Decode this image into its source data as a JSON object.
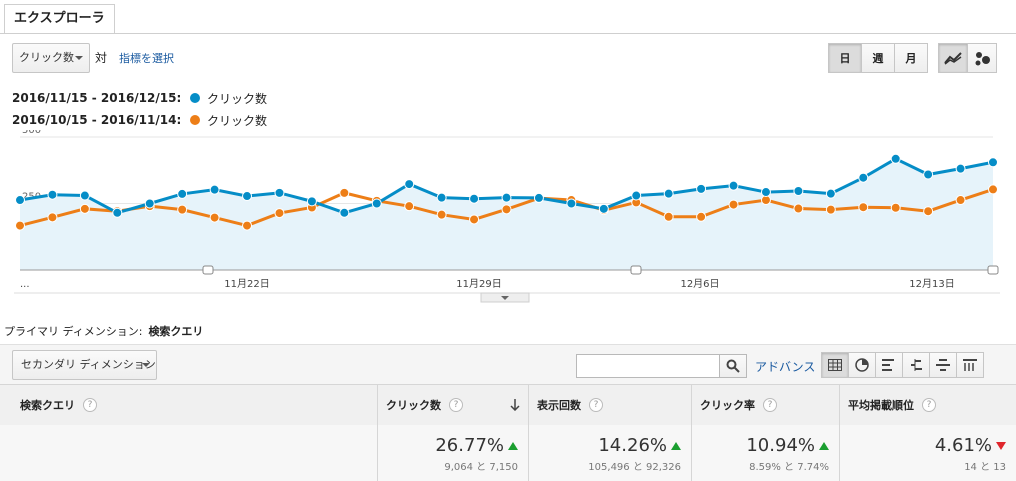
{
  "tab": {
    "label": "エクスプローラ"
  },
  "controls": {
    "metric": "クリック数",
    "vs": "対",
    "select_metric": "指標を選択",
    "granularity": [
      "日",
      "週",
      "月"
    ],
    "granularity_selected": "日",
    "chart_type_selected": "line-chart-icon"
  },
  "legend": [
    {
      "date": "2016/11/15 - 2016/12/15:",
      "metric": "クリック数",
      "color": "#058dc7"
    },
    {
      "date": "2016/10/15 - 2016/11/14:",
      "metric": "クリック数",
      "color": "#ed7e17"
    }
  ],
  "chart_data": {
    "type": "line",
    "ylim": [
      0,
      500
    ],
    "yticks": [
      500,
      250
    ],
    "x_tick_labels": [
      "...",
      "11月22日",
      "11月29日",
      "12月6日",
      "12月13日"
    ],
    "grid": true,
    "series": [
      {
        "name": "クリック数",
        "color": "#058dc7",
        "area": true,
        "values": [
          263,
          283,
          280,
          215,
          250,
          286,
          302,
          278,
          290,
          258,
          215,
          250,
          323,
          272,
          268,
          272,
          271,
          250,
          230,
          280,
          287,
          305,
          317,
          293,
          297,
          287,
          347,
          418,
          359,
          381,
          405
        ]
      },
      {
        "name": "クリック数",
        "color": "#ed7e17",
        "area": false,
        "values": [
          167,
          198,
          230,
          221,
          240,
          227,
          197,
          167,
          214,
          235,
          290,
          260,
          240,
          208,
          190,
          228,
          270,
          263,
          225,
          254,
          200,
          200,
          246,
          263,
          231,
          227,
          236,
          234,
          221,
          263,
          303
        ]
      }
    ]
  },
  "primary_dimension": {
    "label": "プライマリ ディメンション:",
    "value": "検索クエリ"
  },
  "secondary_dimension": "セカンダリ ディメンション",
  "search": {
    "placeholder": ""
  },
  "advance": "アドバンス",
  "table": {
    "dimension_header": "検索クエリ",
    "columns": [
      {
        "label": "クリック数",
        "pct": "26.77%",
        "detail": "9,064 と 7,150",
        "trend": "up"
      },
      {
        "label": "表示回数",
        "pct": "14.26%",
        "detail": "105,496 と 92,326",
        "trend": "up"
      },
      {
        "label": "クリック率",
        "pct": "10.94%",
        "detail": "8.59% と 7.74%",
        "trend": "up"
      },
      {
        "label": "平均掲載順位",
        "pct": "4.61%",
        "detail": "14 と 13",
        "trend": "down"
      }
    ]
  }
}
